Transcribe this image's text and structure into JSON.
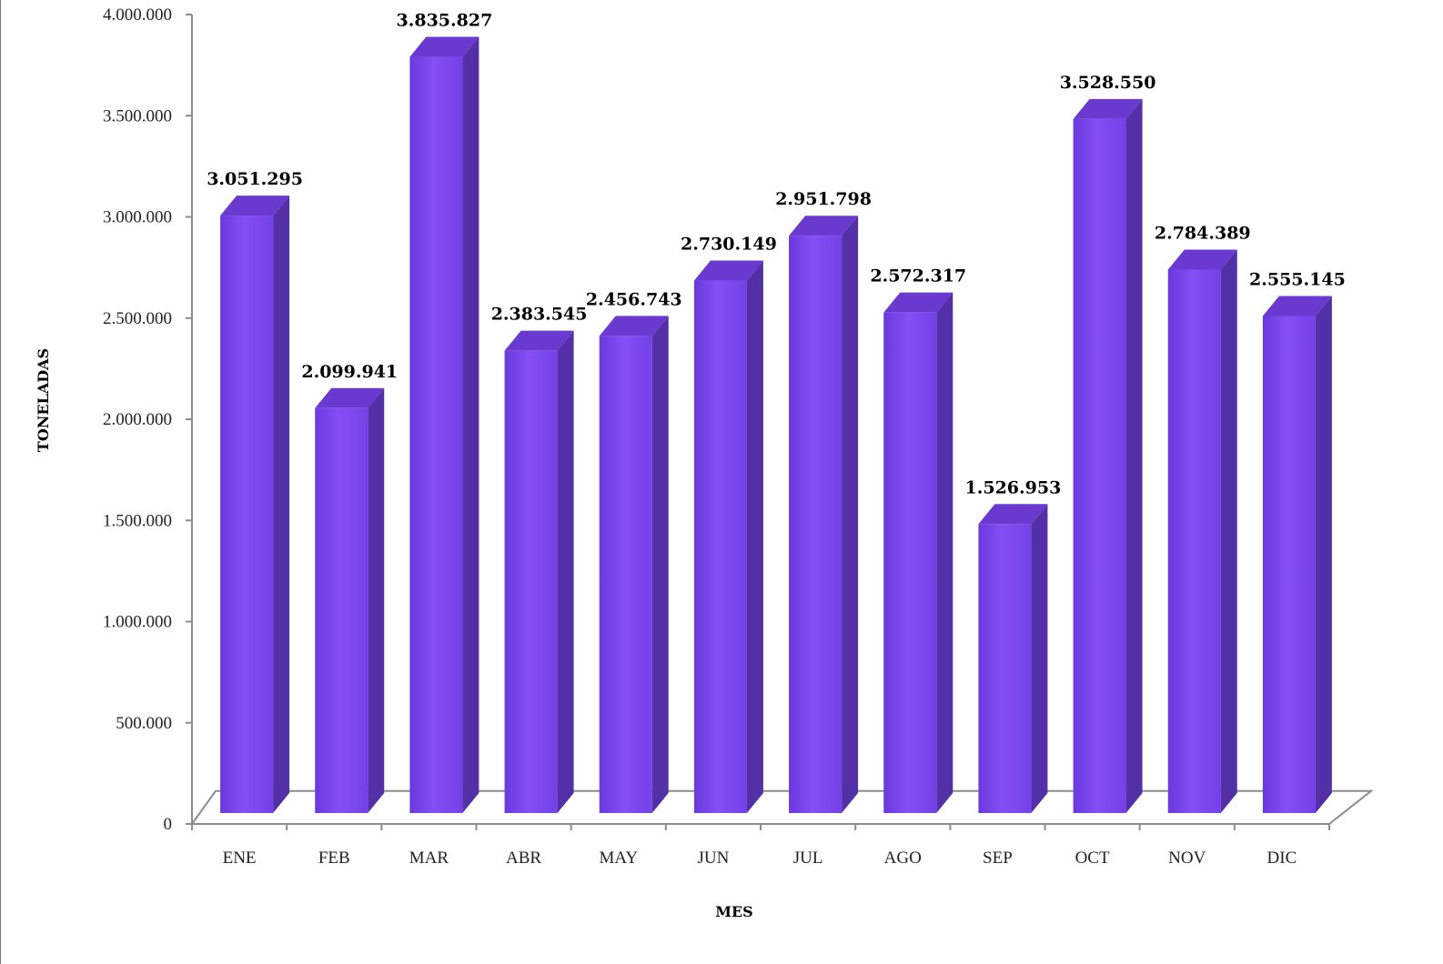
{
  "chart_data": {
    "type": "bar",
    "style": "3d-column",
    "categories": [
      "ENE",
      "FEB",
      "MAR",
      "ABR",
      "MAY",
      "JUN",
      "JUL",
      "AGO",
      "SEP",
      "OCT",
      "NOV",
      "DIC"
    ],
    "values": [
      3051295,
      2099941,
      3835827,
      2383545,
      2456743,
      2730149,
      2951798,
      2572317,
      1526953,
      3528550,
      2784389,
      2555145
    ],
    "value_labels": [
      "3.051.295",
      "2.099.941",
      "3.835.827",
      "2.383.545",
      "2.456.743",
      "2.730.149",
      "2.951.798",
      "2.572.317",
      "1.526.953",
      "3.528.550",
      "2.784.389",
      "2.555.145"
    ],
    "y_ticks": [
      0,
      500000,
      1000000,
      1500000,
      2000000,
      2500000,
      3000000,
      3500000,
      4000000
    ],
    "y_tick_labels": [
      "0",
      "500.000",
      "1.000.000",
      "1.500.000",
      "2.000.000",
      "2.500.000",
      "3.000.000",
      "3.500.000",
      "4.000.000"
    ],
    "xlabel": "MES",
    "ylabel": "TONELADAS",
    "ylim": [
      0,
      4000000
    ],
    "grid": false,
    "legend": "none",
    "colors": {
      "bar_front": "#7c45ee",
      "bar_side": "#5430a8",
      "bar_top": "#6a3ad0",
      "axis": "#8c8c8c"
    }
  }
}
